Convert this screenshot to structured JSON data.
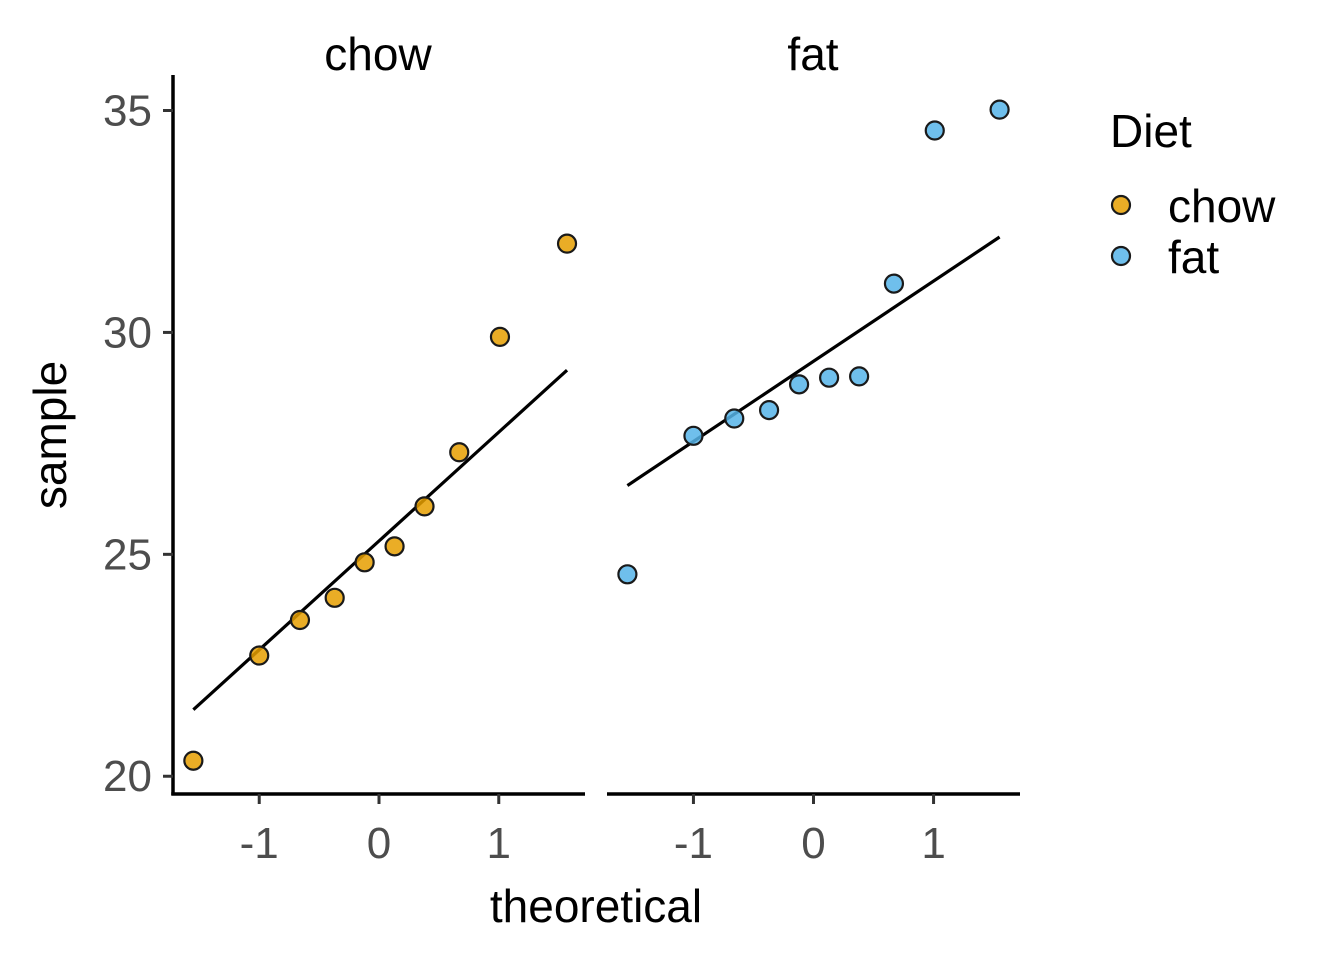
{
  "chart_data": {
    "type": "scatter",
    "subtype": "qq-plot-faceted",
    "xlabel": "theoretical",
    "ylabel": "sample",
    "xlim": [
      -1.72,
      1.72
    ],
    "ylim": [
      19.6,
      35.8
    ],
    "x_ticks": [
      -1,
      0,
      1
    ],
    "x_tick_labels": [
      "-1",
      "0",
      "1"
    ],
    "y_ticks": [
      20,
      25,
      30,
      35
    ],
    "y_tick_labels": [
      "20",
      "25",
      "30",
      "35"
    ],
    "grid": false,
    "legend": {
      "title": "Diet",
      "position": "right",
      "entries": [
        {
          "label": "chow",
          "color": "#E69F00"
        },
        {
          "label": "fat",
          "color": "#56B4E9"
        }
      ]
    },
    "panels": [
      {
        "strip": "chow",
        "color": "#E69F00",
        "points": [
          {
            "x": -1.55,
            "y": 20.35
          },
          {
            "x": -1.0,
            "y": 22.72
          },
          {
            "x": -0.66,
            "y": 23.52
          },
          {
            "x": -0.37,
            "y": 24.02
          },
          {
            "x": -0.12,
            "y": 24.82
          },
          {
            "x": 0.13,
            "y": 25.18
          },
          {
            "x": 0.38,
            "y": 26.08
          },
          {
            "x": 0.67,
            "y": 27.3
          },
          {
            "x": 1.01,
            "y": 29.9
          },
          {
            "x": 1.57,
            "y": 32.0
          }
        ],
        "line": {
          "x": [
            -1.55,
            1.57
          ],
          "y": [
            21.5,
            29.15
          ]
        }
      },
      {
        "strip": "fat",
        "color": "#56B4E9",
        "points": [
          {
            "x": -1.55,
            "y": 24.55
          },
          {
            "x": -1.0,
            "y": 27.67
          },
          {
            "x": -0.66,
            "y": 28.06
          },
          {
            "x": -0.37,
            "y": 28.25
          },
          {
            "x": -0.12,
            "y": 28.83
          },
          {
            "x": 0.13,
            "y": 28.98
          },
          {
            "x": 0.38,
            "y": 29.01
          },
          {
            "x": 0.67,
            "y": 31.1
          },
          {
            "x": 1.01,
            "y": 34.55
          },
          {
            "x": 1.55,
            "y": 35.02
          }
        ],
        "line": {
          "x": [
            -1.55,
            1.55
          ],
          "y": [
            26.55,
            32.15
          ]
        }
      }
    ]
  }
}
